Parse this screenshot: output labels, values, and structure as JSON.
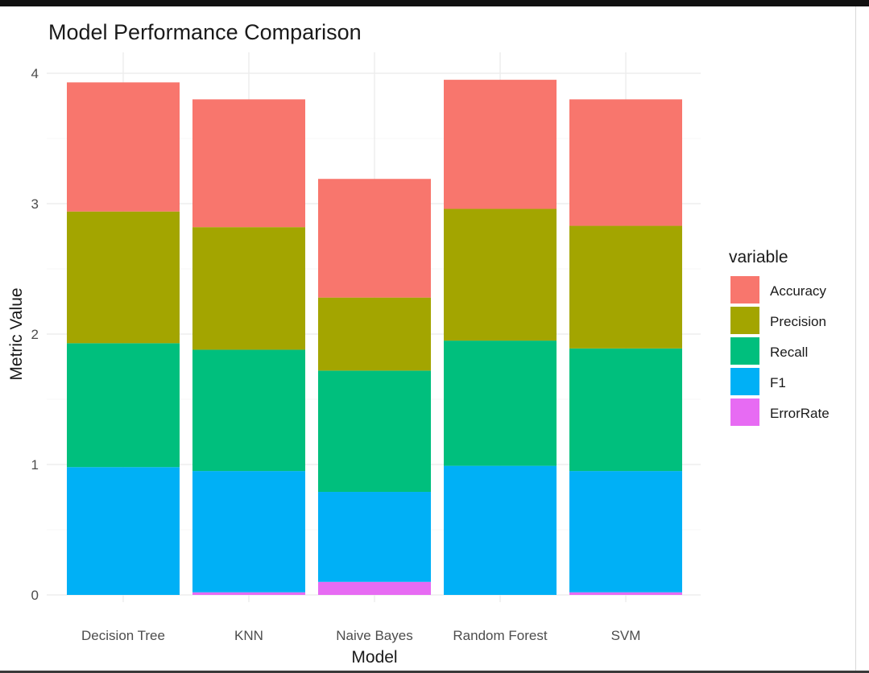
{
  "chart_data": {
    "type": "bar",
    "stacked": true,
    "title": "Model Performance Comparison",
    "xlabel": "Model",
    "ylabel": "Metric Value",
    "ylim": [
      0,
      4.2
    ],
    "yticks": [
      "0",
      "1",
      "2",
      "3",
      "4"
    ],
    "grid": true,
    "legend_title": "variable",
    "legend_position": "right",
    "categories": [
      "Decision Tree",
      "KNN",
      "Naive Bayes",
      "Random Forest",
      "SVM"
    ],
    "series": [
      {
        "name": "ErrorRate",
        "color": "#E76BF3",
        "values": [
          0.0,
          0.02,
          0.1,
          0.0,
          0.02
        ]
      },
      {
        "name": "F1",
        "color": "#00B0F6",
        "values": [
          0.98,
          0.93,
          0.69,
          0.99,
          0.93
        ]
      },
      {
        "name": "Recall",
        "color": "#00BF7D",
        "values": [
          0.95,
          0.93,
          0.93,
          0.96,
          0.94
        ]
      },
      {
        "name": "Precision",
        "color": "#A3A500",
        "values": [
          1.01,
          0.94,
          0.56,
          1.01,
          0.94
        ]
      },
      {
        "name": "Accuracy",
        "color": "#F8766D",
        "values": [
          0.99,
          0.98,
          0.91,
          0.99,
          0.97
        ]
      }
    ],
    "legend_order": [
      "Accuracy",
      "Precision",
      "Recall",
      "F1",
      "ErrorRate"
    ]
  }
}
